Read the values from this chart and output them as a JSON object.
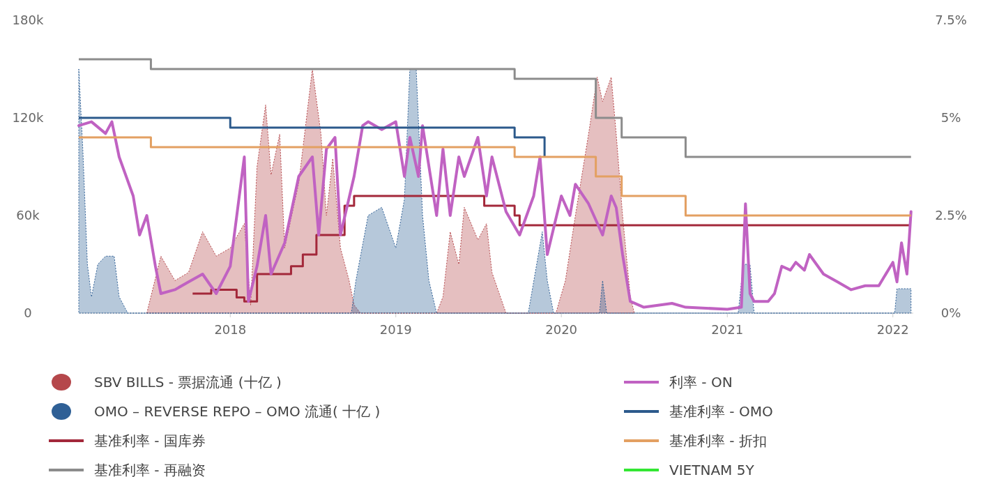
{
  "chart_data": {
    "type": "area",
    "legend": "bottom",
    "xlim": [
      "2017-02-01",
      "2022-02-15"
    ],
    "xticks": [
      "2018",
      "2019",
      "2020",
      "2021",
      "2022"
    ],
    "ylim": [
      0,
      180000
    ],
    "yticks": [
      {
        "value": 0,
        "label": "0"
      },
      {
        "value": 60000,
        "label": "60k"
      },
      {
        "value": 120000,
        "label": "120k"
      },
      {
        "value": 180000,
        "label": "180k"
      }
    ],
    "y2lim": [
      0,
      7.5
    ],
    "y2ticks": [
      {
        "value": 0,
        "label": "0%"
      },
      {
        "value": 2.5,
        "label": "2.5%"
      },
      {
        "value": 5,
        "label": "5%"
      },
      {
        "value": 7.5,
        "label": "7.5%"
      }
    ],
    "series": [
      {
        "name": "SBV BILLS -  票据流通 (十亿 )",
        "color": "#b5474b",
        "x": [
          "2017-07-01",
          "2017-08-01",
          "2017-09-01",
          "2017-10-01",
          "2017-11-01",
          "2017-12-01",
          "2018-01-01",
          "2018-02-01",
          "2018-02-15",
          "2018-03-01",
          "2018-03-20",
          "2018-04-01",
          "2018-04-20",
          "2018-05-01",
          "2018-06-01",
          "2018-07-01",
          "2018-07-20",
          "2018-08-01",
          "2018-08-15",
          "2018-09-01",
          "2018-09-20",
          "2018-10-01",
          "2018-10-15",
          "2019-04-01",
          "2019-04-15",
          "2019-05-01",
          "2019-05-20",
          "2019-06-01",
          "2019-07-01",
          "2019-07-20",
          "2019-08-01",
          "2019-09-01",
          "2019-12-20",
          "2020-01-10",
          "2020-02-01",
          "2020-03-01",
          "2020-03-20",
          "2020-04-01",
          "2020-04-20",
          "2020-05-01",
          "2020-05-15",
          "2020-06-01",
          "2020-06-10"
        ],
        "values": [
          0,
          35000,
          20000,
          25000,
          50000,
          35000,
          40000,
          55000,
          5000,
          90000,
          128000,
          85000,
          110000,
          40000,
          80000,
          150000,
          110000,
          60000,
          95000,
          40000,
          20000,
          5000,
          0,
          0,
          10000,
          50000,
          30000,
          65000,
          45000,
          55000,
          25000,
          0,
          0,
          20000,
          60000,
          110000,
          145000,
          130000,
          145000,
          110000,
          60000,
          10000,
          0
        ]
      },
      {
        "name": "OMO – REVERSE REPO – OMO 流通( 十亿 )",
        "color": "#2f6096",
        "x": [
          "2017-02-01",
          "2017-02-10",
          "2017-02-20",
          "2017-03-01",
          "2017-03-15",
          "2017-04-01",
          "2017-04-20",
          "2017-05-01",
          "2017-05-20",
          "2018-09-25",
          "2018-10-05",
          "2018-11-01",
          "2018-12-01",
          "2019-01-01",
          "2019-01-20",
          "2019-02-01",
          "2019-02-15",
          "2019-03-01",
          "2019-03-15",
          "2019-04-01",
          "2019-10-20",
          "2019-11-20",
          "2019-12-01",
          "2019-12-15",
          "2020-03-25",
          "2020-04-01",
          "2020-04-10",
          "2021-01-25",
          "2021-02-05",
          "2021-02-20",
          "2021-03-01",
          "2022-01-05",
          "2022-01-10",
          "2022-02-10"
        ],
        "values": [
          150000,
          100000,
          30000,
          10000,
          30000,
          35000,
          35000,
          10000,
          0,
          0,
          20000,
          60000,
          65000,
          40000,
          70000,
          150000,
          150000,
          60000,
          20000,
          0,
          0,
          50000,
          20000,
          0,
          0,
          20000,
          0,
          0,
          30000,
          30000,
          0,
          0,
          15000,
          15000
        ]
      },
      {
        "name": "基准利率 - 国库券",
        "type": "step",
        "axis": "y2",
        "color": "#a3283a",
        "x": [
          "2017-10-10",
          "2017-11-20",
          "2018-01-15",
          "2018-02-01",
          "2018-03-01",
          "2018-05-15",
          "2018-06-10",
          "2018-07-10",
          "2018-09-10",
          "2018-10-01",
          "2019-07-15",
          "2019-09-20",
          "2019-10-01",
          "2022-02-10"
        ],
        "values": [
          0.5,
          0.6,
          0.4,
          0.3,
          1.0,
          1.2,
          1.5,
          2.0,
          2.75,
          3.0,
          2.75,
          2.5,
          2.25,
          2.25
        ]
      },
      {
        "name": "基准利率 - 再融资",
        "type": "step",
        "axis": "y2",
        "color": "#8c8c8c",
        "x": [
          "2017-02-01",
          "2017-07-10",
          "2019-09-20",
          "2020-03-17",
          "2020-05-13",
          "2020-10-01",
          "2022-02-10"
        ],
        "values": [
          6.5,
          6.25,
          6.0,
          5.0,
          4.5,
          4.0,
          4.0
        ]
      },
      {
        "name": "利率 - ON",
        "type": "line",
        "axis": "y2",
        "color": "#c062c2",
        "x": [
          "2017-02-01",
          "2017-03-01",
          "2017-04-01",
          "2017-04-15",
          "2017-05-01",
          "2017-06-01",
          "2017-06-15",
          "2017-07-01",
          "2017-07-20",
          "2017-08-01",
          "2017-09-01",
          "2017-10-01",
          "2017-11-01",
          "2017-12-01",
          "2018-01-01",
          "2018-02-01",
          "2018-02-10",
          "2018-03-01",
          "2018-03-20",
          "2018-04-01",
          "2018-05-01",
          "2018-06-01",
          "2018-07-01",
          "2018-07-15",
          "2018-08-01",
          "2018-08-20",
          "2018-09-01",
          "2018-10-01",
          "2018-10-20",
          "2018-11-01",
          "2018-12-01",
          "2019-01-01",
          "2019-01-20",
          "2019-02-01",
          "2019-02-20",
          "2019-03-01",
          "2019-04-01",
          "2019-04-15",
          "2019-05-01",
          "2019-05-20",
          "2019-06-01",
          "2019-07-01",
          "2019-07-20",
          "2019-08-01",
          "2019-09-01",
          "2019-10-01",
          "2019-11-01",
          "2019-11-15",
          "2019-12-01",
          "2020-01-01",
          "2020-01-20",
          "2020-02-01",
          "2020-03-01",
          "2020-04-01",
          "2020-04-20",
          "2020-05-01",
          "2020-05-15",
          "2020-06-01",
          "2020-07-01",
          "2020-09-01",
          "2020-10-01",
          "2021-01-01",
          "2021-02-01",
          "2021-02-10",
          "2021-02-20",
          "2021-03-01",
          "2021-04-01",
          "2021-04-15",
          "2021-05-01",
          "2021-05-20",
          "2021-06-01",
          "2021-06-20",
          "2021-07-01",
          "2021-08-01",
          "2021-09-01",
          "2021-10-01",
          "2021-11-01",
          "2021-12-01",
          "2022-01-01",
          "2022-01-10",
          "2022-01-20",
          "2022-02-01",
          "2022-02-10"
        ],
        "values": [
          4.8,
          4.9,
          4.6,
          4.9,
          4.0,
          3.0,
          2.0,
          2.5,
          1.2,
          0.5,
          0.6,
          0.8,
          1.0,
          0.5,
          1.2,
          4.0,
          0.3,
          1.2,
          2.5,
          1.0,
          1.8,
          3.5,
          4.0,
          2.0,
          4.2,
          4.5,
          2.0,
          3.5,
          4.8,
          4.9,
          4.7,
          4.9,
          3.5,
          4.5,
          3.5,
          4.8,
          2.5,
          4.2,
          2.5,
          4.0,
          3.5,
          4.5,
          3.0,
          4.0,
          2.6,
          2.0,
          3.0,
          4.0,
          1.5,
          3.0,
          2.5,
          3.3,
          2.8,
          2.0,
          3.0,
          2.7,
          1.5,
          0.3,
          0.15,
          0.25,
          0.15,
          0.1,
          0.15,
          2.8,
          0.5,
          0.3,
          0.3,
          0.5,
          1.2,
          1.1,
          1.3,
          1.1,
          1.5,
          1.0,
          0.8,
          0.6,
          0.7,
          0.7,
          1.3,
          0.8,
          1.8,
          1.0,
          2.6
        ]
      },
      {
        "name": "基准利率  - OMO",
        "type": "step",
        "axis": "y2",
        "color": "#2c5a8c",
        "x": [
          "2017-02-01",
          "2018-01-01",
          "2019-09-20",
          "2019-11-25"
        ],
        "values": [
          5.0,
          4.75,
          4.5,
          4.0
        ]
      },
      {
        "name": "基准利率 - 折扣",
        "type": "step",
        "axis": "y2",
        "color": "#e3a062",
        "x": [
          "2017-02-01",
          "2017-07-10",
          "2019-09-20",
          "2020-03-17",
          "2020-05-13",
          "2020-10-01",
          "2022-02-10"
        ],
        "values": [
          4.5,
          4.25,
          4.0,
          3.5,
          3.0,
          2.5,
          2.5
        ]
      },
      {
        "name": "VIETNAM 5Y",
        "type": "line",
        "axis": "y2",
        "color": "#33e633"
      }
    ]
  }
}
